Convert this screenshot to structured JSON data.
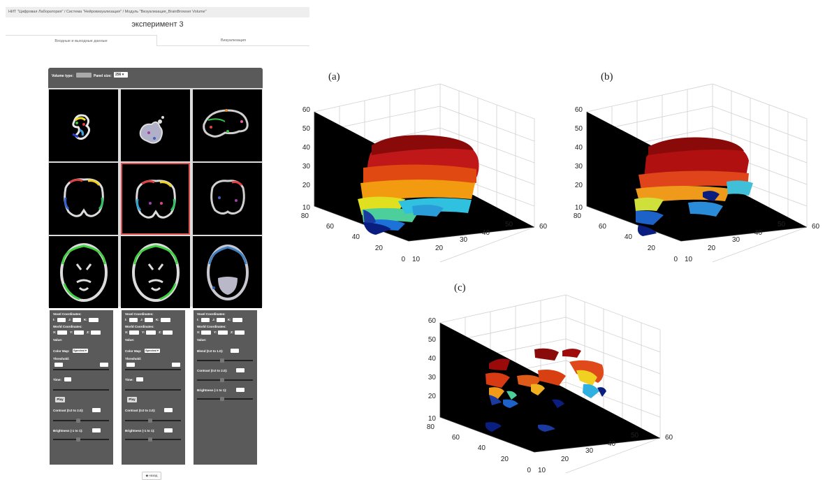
{
  "breadcrumb": "НИТ \"Цифровая Лаборатория\" / Система \"Нейровизуализация\" / Модуль \"Визуализация_BrainBrowser Volume\"",
  "page_title": "эксперимент 3",
  "tabs": [
    {
      "label": "Входные и выходные данные"
    },
    {
      "label": "Визуализация"
    }
  ],
  "viewer": {
    "volume_type_label": "Volume type:",
    "panel_size_label": "Panel size:",
    "panel_size_value": "256 ▾",
    "panels": [
      {
        "voxel_label": "Voxel Coordinates:",
        "voxel_axes": [
          "I:",
          "J:",
          "K:"
        ],
        "world_label": "World Coordinates:",
        "world_axes": [
          "X:",
          "Y:",
          "Z:"
        ],
        "value_label": "Value:",
        "colormap_label": "Color Map:",
        "colormap_value": "Spectral ▾",
        "threshold_label": "Threshold:",
        "time_label": "Time:",
        "play_label": "Play",
        "contrast_label": "Contrast (0.0 to 2.0):",
        "brightness_label": "Brightness (-1 to 1):"
      },
      {
        "voxel_label": "Voxel Coordinates:",
        "voxel_axes": [
          "I:",
          "J:",
          "K:"
        ],
        "world_label": "World Coordinates:",
        "world_axes": [
          "X:",
          "Y:",
          "Z:"
        ],
        "value_label": "Value:",
        "colormap_label": "Color Map:",
        "colormap_value": "Spectral ▾",
        "threshold_label": "Threshold:",
        "time_label": "Time:",
        "play_label": "Play",
        "contrast_label": "Contrast (0.0 to 2.0):",
        "brightness_label": "Brightness (-1 to 1):"
      },
      {
        "voxel_label": "Voxel Coordinates:",
        "voxel_axes": [
          "I:",
          "J:",
          "K:"
        ],
        "world_label": "World Coordinates:",
        "world_axes": [
          "X:",
          "Y:",
          "Z:"
        ],
        "value_label": "Value:",
        "blend_label": "Blend (0.0 to 1.0):",
        "contrast_label": "Contrast (0.0 to 2.0):",
        "brightness_label": "Brightness (-1 to 1):"
      }
    ]
  },
  "back_button": "◆ назад",
  "plots": [
    {
      "label": "(a)",
      "z_ticks": [
        "60",
        "50",
        "40",
        "30",
        "20",
        "10"
      ],
      "y_ticks": [
        "80",
        "60",
        "40",
        "20",
        "0"
      ],
      "x_ticks": [
        "10",
        "20",
        "30",
        "40",
        "50",
        "60"
      ]
    },
    {
      "label": "(b)",
      "z_ticks": [
        "60",
        "50",
        "40",
        "30",
        "20",
        "10"
      ],
      "y_ticks": [
        "80",
        "60",
        "40",
        "20",
        "0"
      ],
      "x_ticks": [
        "10",
        "20",
        "30",
        "40",
        "50",
        "60"
      ]
    },
    {
      "label": "(c)",
      "z_ticks": [
        "60",
        "50",
        "40",
        "30",
        "20",
        "10"
      ],
      "y_ticks": [
        "80",
        "60",
        "40",
        "20",
        "0"
      ],
      "x_ticks": [
        "10",
        "20",
        "30",
        "40",
        "50",
        "60"
      ]
    }
  ],
  "colors": {
    "panel_bg": "#5a5a5a",
    "active_border": "#e05050"
  }
}
